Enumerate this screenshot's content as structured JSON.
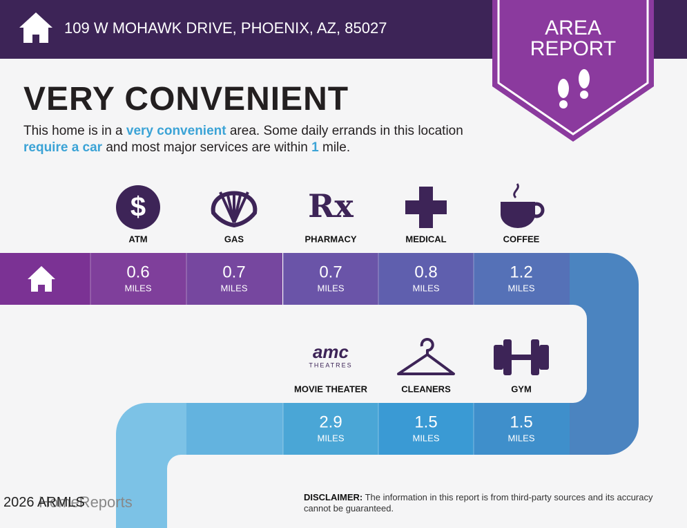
{
  "header": {
    "address": "109 W MOHAWK DRIVE, PHOENIX, AZ, 85027"
  },
  "badge": {
    "line1": "AREA",
    "line2": "REPORT"
  },
  "heading": "VERY CONVENIENT",
  "description": [
    {
      "text": "This home is in a ",
      "emphasis": false
    },
    {
      "text": "very convenient",
      "emphasis": true
    },
    {
      "text": " area. Some daily errands in this location ",
      "emphasis": false
    },
    {
      "text": "require a car",
      "emphasis": true
    },
    {
      "text": " and most major services are within ",
      "emphasis": false
    },
    {
      "text": "1",
      "emphasis": true
    },
    {
      "text": " mile.",
      "emphasis": false
    }
  ],
  "services": [
    {
      "name": "ATM",
      "glyph": "$",
      "distance": 0.6,
      "unit": "MILES"
    },
    {
      "name": "GAS",
      "distance": 0.7,
      "unit": "MILES"
    },
    {
      "name": "PHARMACY",
      "glyph": "Rx",
      "distance": 0.7,
      "unit": "MILES"
    },
    {
      "name": "MEDICAL",
      "distance": 0.8,
      "unit": "MILES"
    },
    {
      "name": "COFFEE",
      "distance": 1.2,
      "unit": "MILES"
    },
    {
      "name": "MOVIE THEATER",
      "logo": [
        "amc",
        "THEATRES"
      ],
      "distance": 2.9,
      "unit": "MILES"
    },
    {
      "name": "CLEANERS",
      "distance": 1.5,
      "unit": "MILES"
    },
    {
      "name": "GYM",
      "distance": 1.5,
      "unit": "MILES"
    }
  ],
  "disclaimer": {
    "label": "DISCLAIMER:",
    "text": " The information in this report is from third-party sources and its accuracy cannot be guaranteed."
  },
  "footer": {
    "copyright": "2026 ARMLS",
    "brand": "HomeReports"
  }
}
